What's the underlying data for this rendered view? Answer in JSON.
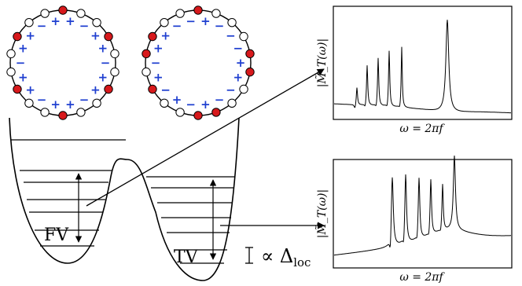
{
  "well_labels": {
    "left": "FV",
    "right": "TV"
  },
  "splitting_label": {
    "prefix": "∝ Δ",
    "subscript": "loc"
  },
  "spectra": [
    {
      "y_label": "|M̃_T(ω)|",
      "x_label": "ω = 2πf"
    },
    {
      "y_label": "|M̃_T(ω)|",
      "x_label": "ω = 2πf"
    }
  ],
  "rings": [
    {
      "site_colors": [
        "red",
        "white",
        "white",
        "red",
        "white",
        "white",
        "red",
        "white",
        "white",
        "red",
        "white",
        "white",
        "red",
        "white",
        "white",
        "red",
        "white",
        "white"
      ],
      "bond_signs": [
        "+",
        "-",
        "+",
        "+",
        "-",
        "+",
        "+",
        "-",
        "+",
        "+",
        "-",
        "+",
        "+",
        "-",
        "+",
        "+",
        "-",
        "+"
      ]
    },
    {
      "site_colors": [
        "red",
        "white",
        "white",
        "white",
        "red",
        "red",
        "white",
        "white",
        "red",
        "red",
        "white",
        "white",
        "red",
        "white",
        "red",
        "red",
        "white",
        "white"
      ],
      "bond_signs": [
        "+",
        "-",
        "-",
        "-",
        "+",
        "+",
        "-",
        "-",
        "+",
        "-",
        "+",
        "-",
        "+",
        "-",
        "+",
        "+",
        "-",
        "-"
      ]
    }
  ],
  "colors": {
    "site_red": "#d7191c",
    "sign_blue": "#1f3fd0",
    "line": "#000000"
  }
}
